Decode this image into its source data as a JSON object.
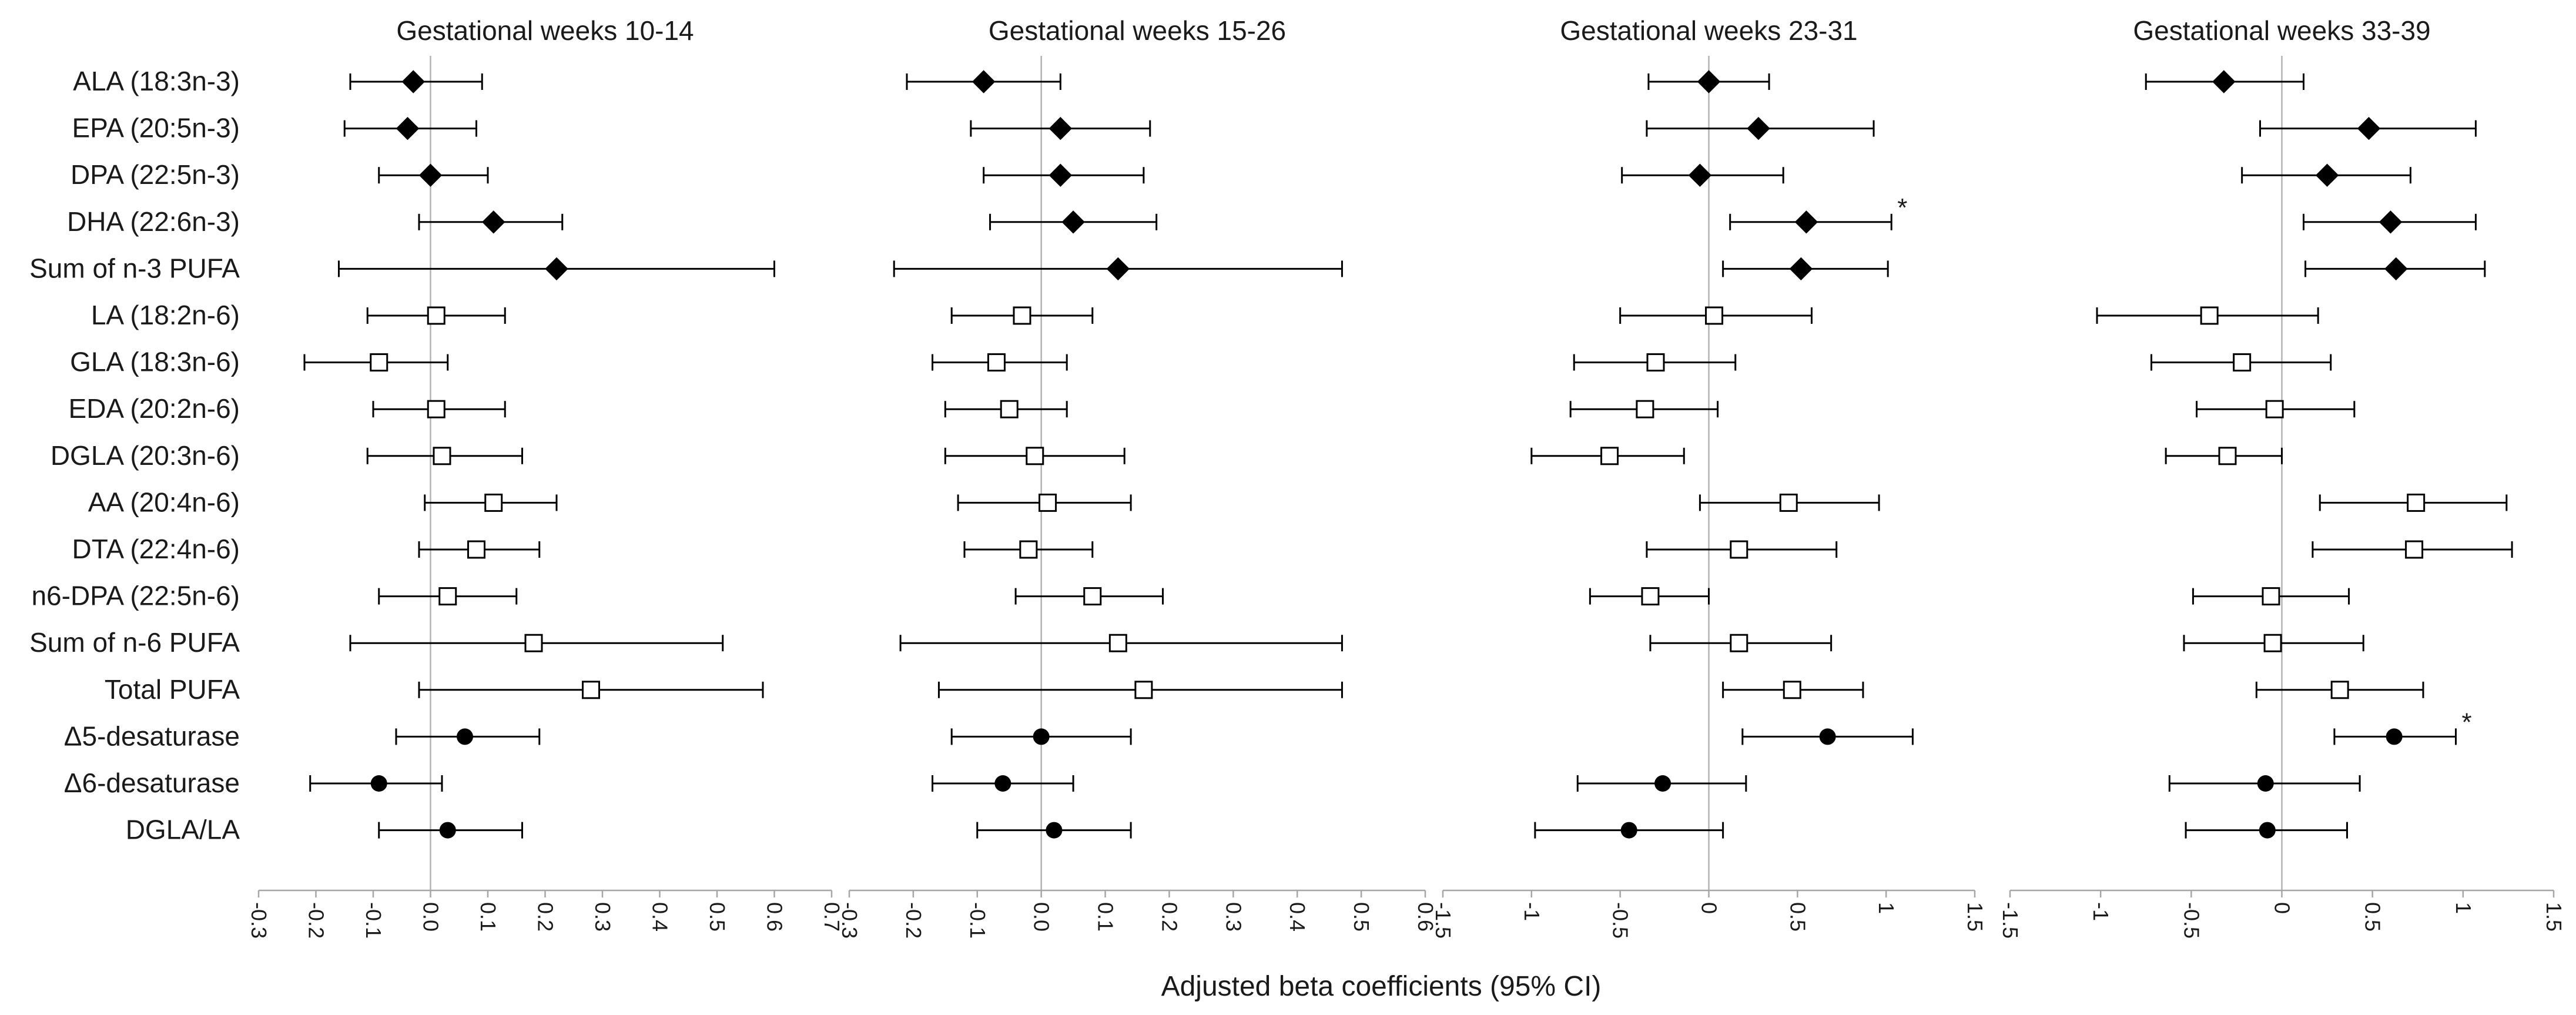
{
  "chart_data": {
    "type": "forest",
    "rows": [
      "ALA (18:3n-3)",
      "EPA (20:5n-3)",
      "DPA (22:5n-3)",
      "DHA (22:6n-3)",
      "Sum of n-3 PUFA",
      "LA (18:2n-6)",
      "GLA (18:3n-6)",
      "EDA (20:2n-6)",
      "DGLA (20:3n-6)",
      "AA (20:4n-6)",
      "DTA (22:4n-6)",
      "n6-DPA (22:5n-6)",
      "Sum of n-6 PUFA",
      "Total PUFA",
      "Δ5-desaturase",
      "Δ6-desaturase",
      "DGLA/LA"
    ],
    "markers": [
      "diamond",
      "diamond",
      "diamond",
      "diamond",
      "diamond",
      "square",
      "square",
      "square",
      "square",
      "square",
      "square",
      "square",
      "square",
      "square",
      "circle",
      "circle",
      "circle"
    ],
    "xlabel": "Adjusted beta coefficients (95% CI)",
    "panels": [
      {
        "title": "Gestational weeks 10-14",
        "xlim": [
          -0.3,
          0.7
        ],
        "ticks": [
          "-0.3",
          "-0.2",
          "-0.1",
          "0.0",
          "0.1",
          "0.2",
          "0.3",
          "0.4",
          "0.5",
          "0.6",
          "0.7"
        ],
        "tick_values": [
          -0.3,
          -0.2,
          -0.1,
          0,
          0.1,
          0.2,
          0.3,
          0.4,
          0.5,
          0.6,
          0.7
        ],
        "estimates": [
          -0.03,
          -0.04,
          0.0,
          0.11,
          0.22,
          0.01,
          -0.09,
          0.01,
          0.02,
          0.11,
          0.08,
          0.03,
          0.18,
          0.28,
          0.06,
          -0.09,
          0.03
        ],
        "ci_low": [
          -0.14,
          -0.15,
          -0.09,
          -0.02,
          -0.16,
          -0.11,
          -0.22,
          -0.1,
          -0.11,
          -0.01,
          -0.02,
          -0.09,
          -0.14,
          -0.02,
          -0.06,
          -0.21,
          -0.09
        ],
        "ci_high": [
          0.09,
          0.08,
          0.1,
          0.23,
          0.6,
          0.13,
          0.03,
          0.13,
          0.16,
          0.22,
          0.19,
          0.15,
          0.51,
          0.58,
          0.19,
          0.02,
          0.16
        ],
        "significant": []
      },
      {
        "title": "Gestational weeks 15-26",
        "xlim": [
          -0.3,
          0.6
        ],
        "ticks": [
          "-0.3",
          "-0.2",
          "-0.1",
          "0.0",
          "0.1",
          "0.2",
          "0.3",
          "0.4",
          "0.5",
          "0.6"
        ],
        "tick_values": [
          -0.3,
          -0.2,
          -0.1,
          0,
          0.1,
          0.2,
          0.3,
          0.4,
          0.5,
          0.6
        ],
        "estimates": [
          -0.09,
          0.03,
          0.03,
          0.05,
          0.12,
          -0.03,
          -0.07,
          -0.05,
          -0.01,
          0.01,
          -0.02,
          0.08,
          0.12,
          0.16,
          0.0,
          -0.06,
          0.02
        ],
        "ci_low": [
          -0.21,
          -0.11,
          -0.09,
          -0.08,
          -0.23,
          -0.14,
          -0.17,
          -0.15,
          -0.15,
          -0.13,
          -0.12,
          -0.04,
          -0.22,
          -0.16,
          -0.14,
          -0.17,
          -0.1
        ],
        "ci_high": [
          0.03,
          0.17,
          0.16,
          0.18,
          0.47,
          0.08,
          0.04,
          0.04,
          0.13,
          0.14,
          0.08,
          0.19,
          0.47,
          0.47,
          0.14,
          0.05,
          0.14
        ],
        "significant": []
      },
      {
        "title": "Gestational weeks 23-31",
        "xlim": [
          -1.5,
          1.5
        ],
        "ticks": [
          "-1.5",
          "-1",
          "-0.5",
          "0",
          "0.5",
          "1",
          "1.5"
        ],
        "tick_values": [
          -1.5,
          -1,
          -0.5,
          0,
          0.5,
          1,
          1.5
        ],
        "estimates": [
          0.0,
          0.28,
          -0.05,
          0.55,
          0.52,
          0.03,
          -0.3,
          -0.36,
          -0.56,
          0.45,
          0.17,
          -0.33,
          0.17,
          0.47,
          0.67,
          -0.26,
          -0.45
        ],
        "ci_low": [
          -0.34,
          -0.35,
          -0.49,
          0.12,
          0.08,
          -0.5,
          -0.76,
          -0.78,
          -1.0,
          -0.05,
          -0.35,
          -0.67,
          -0.33,
          0.08,
          0.19,
          -0.74,
          -0.98
        ],
        "ci_high": [
          0.34,
          0.93,
          0.42,
          1.03,
          1.01,
          0.58,
          0.15,
          0.05,
          -0.14,
          0.96,
          0.72,
          0.0,
          0.69,
          0.87,
          1.15,
          0.21,
          0.08
        ],
        "significant": [
          "DHA (22:6n-3)"
        ]
      },
      {
        "title": "Gestational weeks 33-39",
        "xlim": [
          -1.5,
          1.5
        ],
        "ticks": [
          "-1.5",
          "-1",
          "-0.5",
          "0",
          "0.5",
          "1",
          "1.5"
        ],
        "tick_values": [
          -1.5,
          -1,
          -0.5,
          0,
          0.5,
          1,
          1.5
        ],
        "estimates": [
          -0.32,
          0.48,
          0.25,
          0.6,
          0.63,
          -0.4,
          -0.22,
          -0.04,
          -0.3,
          0.74,
          0.73,
          -0.06,
          -0.05,
          0.32,
          0.62,
          -0.09,
          -0.08
        ],
        "ci_low": [
          -0.75,
          -0.12,
          -0.22,
          0.12,
          0.13,
          -1.02,
          -0.72,
          -0.47,
          -0.64,
          0.21,
          0.17,
          -0.49,
          -0.54,
          -0.14,
          0.29,
          -0.62,
          -0.53
        ],
        "ci_high": [
          0.12,
          1.07,
          0.71,
          1.07,
          1.12,
          0.2,
          0.27,
          0.4,
          0.0,
          1.24,
          1.27,
          0.37,
          0.45,
          0.78,
          0.96,
          0.43,
          0.36
        ],
        "significant": [
          "Δ5-desaturase"
        ]
      }
    ]
  },
  "significance_marker": "*"
}
